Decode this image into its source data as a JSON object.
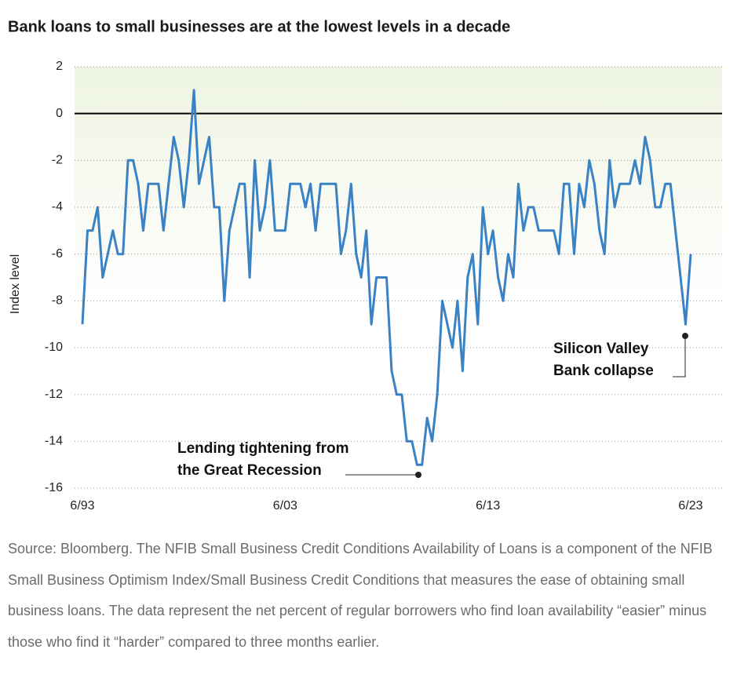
{
  "chart_data": {
    "type": "line",
    "title": "Bank loans to small businesses are at the lowest levels in a decade",
    "y_label": "Index level",
    "categories": [
      "6/93",
      null,
      null,
      null,
      null,
      null,
      null,
      null,
      null,
      null,
      null,
      null,
      null,
      null,
      null,
      null,
      null,
      null,
      null,
      null,
      null,
      null,
      null,
      null,
      null,
      null,
      null,
      null,
      null,
      null,
      null,
      null,
      null,
      null,
      null,
      null,
      null,
      null,
      null,
      null,
      "6/03",
      null,
      null,
      null,
      null,
      null,
      null,
      null,
      null,
      null,
      null,
      null,
      null,
      null,
      null,
      null,
      null,
      null,
      null,
      null,
      null,
      null,
      null,
      null,
      null,
      null,
      null,
      null,
      null,
      null,
      null,
      null,
      null,
      null,
      null,
      null,
      null,
      null,
      null,
      null,
      "6/13",
      null,
      null,
      null,
      null,
      null,
      null,
      null,
      null,
      null,
      null,
      null,
      null,
      null,
      null,
      null,
      null,
      null,
      null,
      null,
      null,
      null,
      null,
      null,
      null,
      null,
      null,
      null,
      null,
      null,
      null,
      null,
      null,
      null,
      null,
      null,
      null,
      null,
      null,
      null,
      "6/23"
    ],
    "values": [
      -9,
      -5,
      -5,
      -4,
      -7,
      -6,
      -5,
      -6,
      -6,
      -2,
      -2,
      -3,
      -5,
      -3,
      -3,
      -3,
      -5,
      -3,
      -1,
      -2,
      -4,
      -2,
      1,
      -3,
      -2,
      -1,
      -4,
      -4,
      -8,
      -5,
      -4,
      -3,
      -3,
      -7,
      -2,
      -5,
      -4,
      -2,
      -5,
      -5,
      -5,
      -3,
      -3,
      -3,
      -4,
      -3,
      -5,
      -3,
      -3,
      -3,
      -3,
      -6,
      -5,
      -3,
      -6,
      -7,
      -5,
      -9,
      -7,
      -7,
      -7,
      -11,
      -12,
      -12,
      -14,
      -14,
      -15,
      -15,
      -13,
      -14,
      -12,
      -8,
      -9,
      -10,
      -8,
      -11,
      -7,
      -6,
      -9,
      -4,
      -6,
      -5,
      -7,
      -8,
      -6,
      -7,
      -3,
      -5,
      -4,
      -4,
      -5,
      -5,
      -5,
      -5,
      -6,
      -3,
      -3,
      -6,
      -3,
      -4,
      -2,
      -3,
      -5,
      -6,
      -2,
      -4,
      -3,
      -3,
      -3,
      -2,
      -3,
      -1,
      -2,
      -4,
      -4,
      -3,
      -3,
      -5,
      -7,
      -9,
      -6
    ],
    "color": "#3a82c4",
    "ylim": [
      -16,
      2
    ],
    "yticks": [
      2,
      0,
      -2,
      -4,
      -6,
      -8,
      -10,
      -12,
      -14,
      -16
    ],
    "grid": true,
    "annotations": [
      {
        "lines": [
          "Lending tightening from",
          "the Great Recession"
        ]
      },
      {
        "lines": [
          "Silicon Valley",
          "Bank collapse"
        ]
      }
    ],
    "source": "Source: Bloomberg. The NFIB Small Business Credit Conditions Availability of Loans is a component of the NFIB Small Business Optimism Index/Small Business Credit Conditions that measures the ease of obtaining small business loans. The data represent the net percent of regular borrowers who find loan availability “easier” minus those who find it “harder” compared to three months earlier."
  }
}
